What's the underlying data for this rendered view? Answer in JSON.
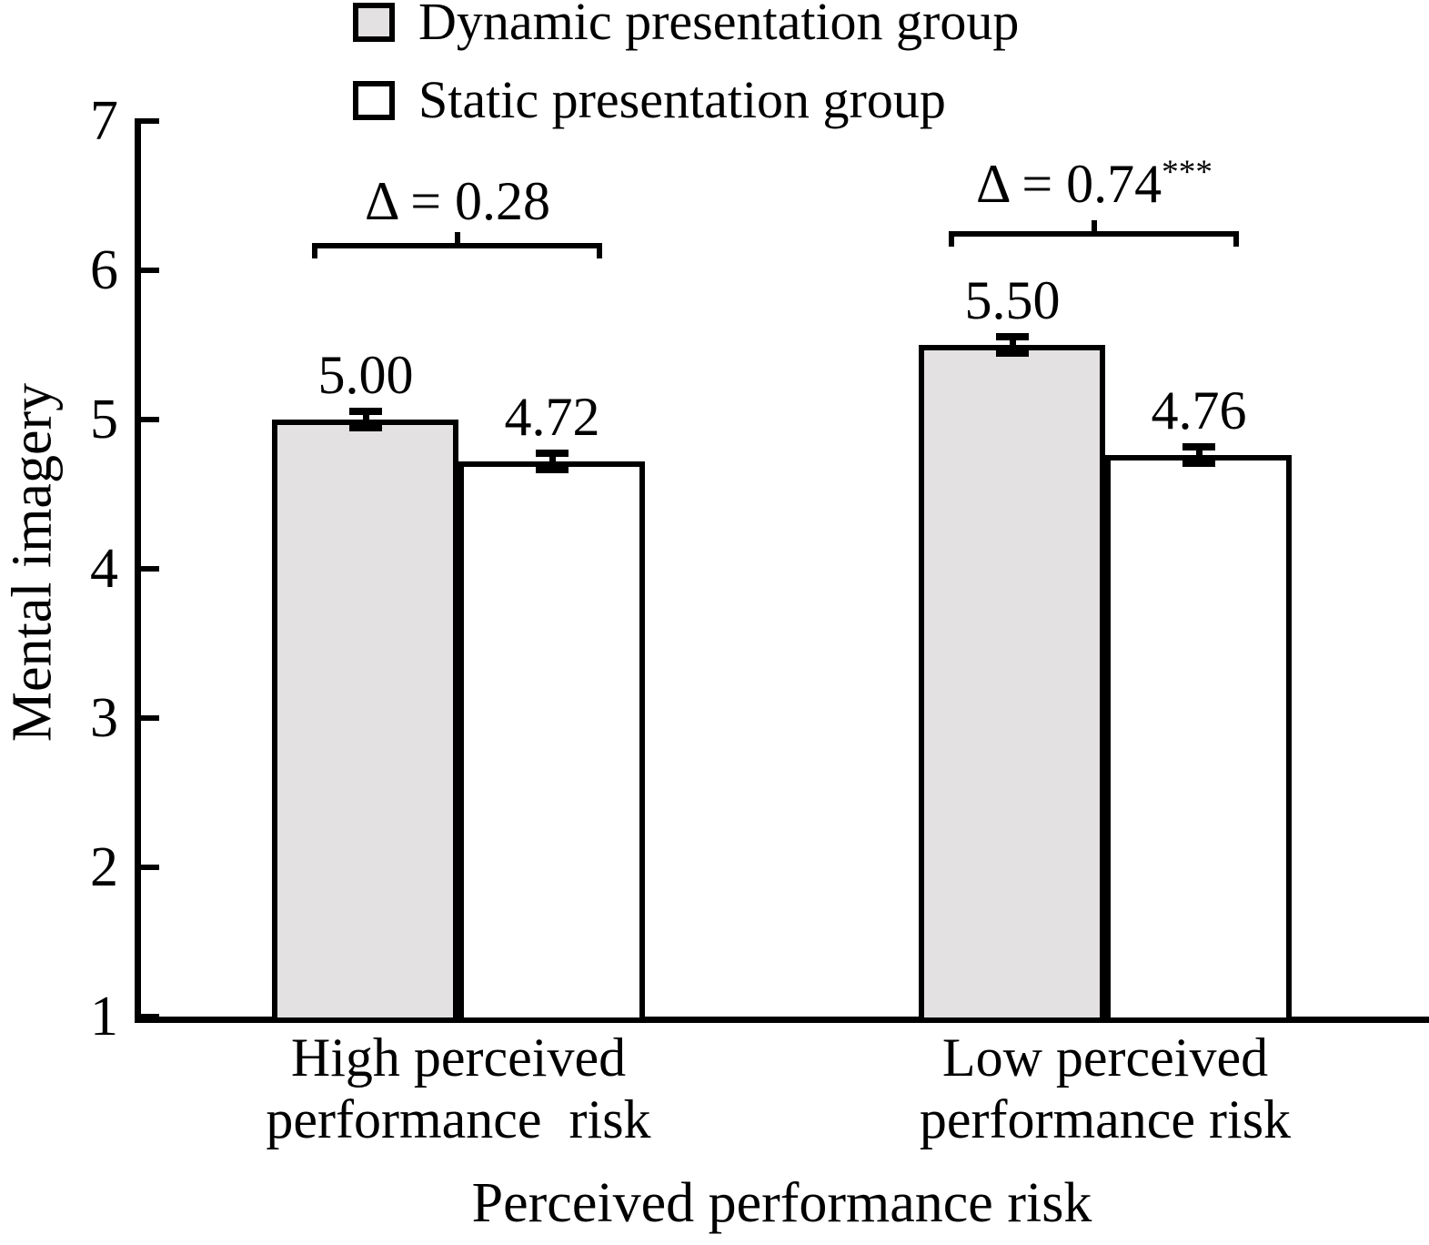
{
  "chart_data": {
    "type": "bar",
    "title": "",
    "xlabel": "Perceived performance risk",
    "ylabel": "Mental imagery",
    "ylim": [
      1,
      7
    ],
    "yticks": [
      1,
      2,
      3,
      4,
      5,
      6,
      7
    ],
    "grid": "off",
    "legend_position": "top-left",
    "categories": [
      "High perceived\nperformance  risk",
      "Low perceived\nperformance risk"
    ],
    "series": [
      {
        "name": "Dynamic presentation group",
        "values": [
          5.0,
          5.5
        ],
        "value_labels": [
          "5.00",
          "5.50"
        ],
        "fill": "#e4e1e2"
      },
      {
        "name": "Static presentation group",
        "values": [
          4.72,
          4.76
        ],
        "value_labels": [
          "4.72",
          "4.76"
        ],
        "fill": "#ffffff"
      }
    ],
    "error_bar_half_width": 0.08,
    "annotations": [
      {
        "group_index": 0,
        "text": "Δ = 0.28",
        "sig": ""
      },
      {
        "group_index": 1,
        "text": "Δ = 0.74",
        "sig": "***"
      }
    ],
    "colors": {
      "bar_fill_dynamic": "#e4e1e2",
      "bar_fill_static": "#ffffff",
      "ink": "#000000"
    }
  }
}
